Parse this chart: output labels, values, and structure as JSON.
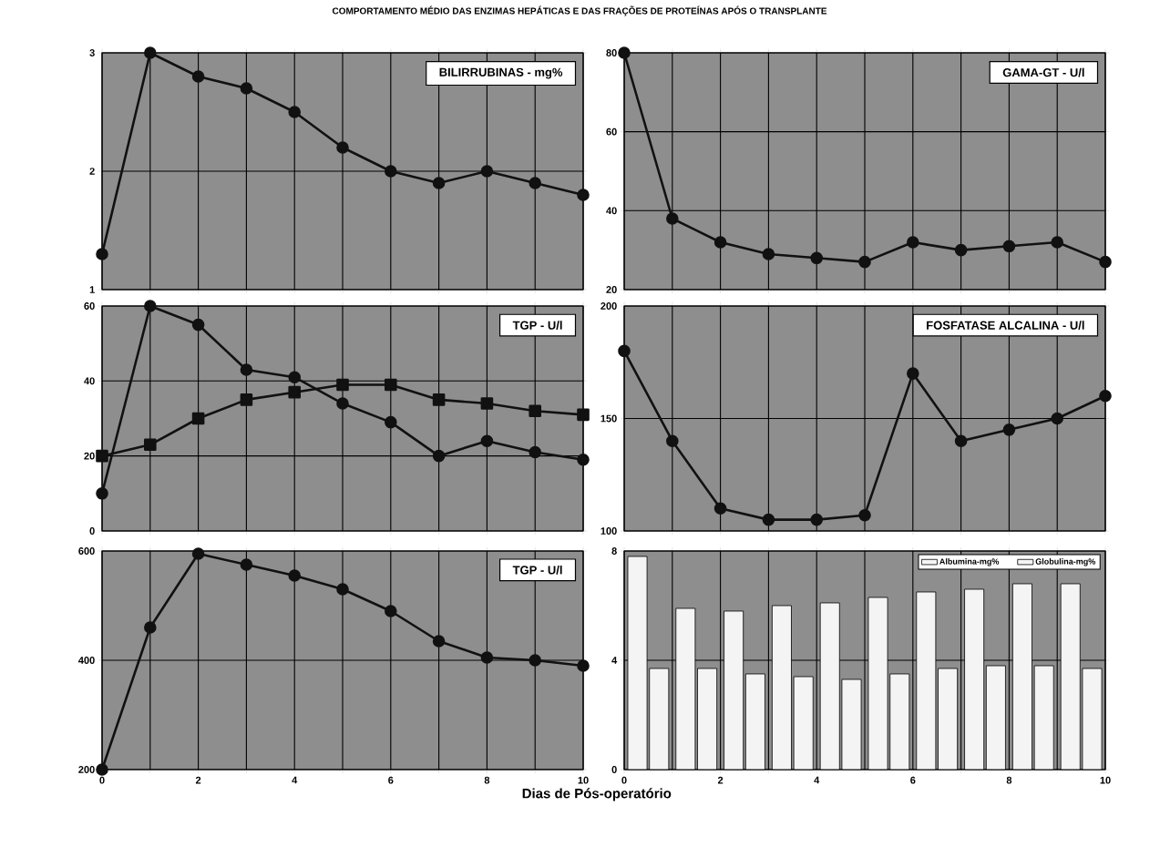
{
  "chart_data": [
    {
      "type": "line",
      "title": "BILIRRUBINAS - mg%",
      "annotations": [
        "COMPORTAMENTO MÉDIO DAS ENZIMAS HEPÁTICAS E DAS FRAÇÕES DE PROTEÍNAS APÓS O TRANSPLANTE"
      ],
      "x": [
        0,
        1,
        2,
        3,
        4,
        5,
        6,
        7,
        8,
        9,
        10
      ],
      "series": [
        {
          "color": "#111111",
          "values": [
            1.3,
            3.0,
            2.8,
            2.7,
            2.5,
            2.2,
            2.0,
            1.9,
            2.0,
            1.9,
            1.8
          ]
        }
      ],
      "marker": "circle",
      "xlim": [
        0,
        10
      ],
      "xticks": [
        0,
        {
          "value": 1,
          "label": null
        },
        2,
        {
          "value": 3,
          "label": null
        },
        4,
        {
          "value": 5,
          "label": null
        },
        6,
        {
          "value": 7,
          "label": null
        },
        8,
        {
          "value": 9,
          "label": null
        },
        10
      ],
      "ylim": [
        1,
        3
      ],
      "yticks": [
        1,
        2,
        3
      ],
      "grid": true,
      "tick_labels": "y"
    },
    {
      "type": "line",
      "title": "GAMA-GT  - U/l",
      "x": [
        0,
        1,
        2,
        3,
        4,
        5,
        6,
        7,
        8,
        9,
        10
      ],
      "series": [
        {
          "color": "#111111",
          "values": [
            80,
            38,
            32,
            29,
            28,
            27,
            32,
            30,
            31,
            32,
            27
          ]
        }
      ],
      "marker": "circle",
      "xlim": [
        0,
        10
      ],
      "xticks": [
        0,
        {
          "value": 1,
          "label": null
        },
        2,
        {
          "value": 3,
          "label": null
        },
        4,
        {
          "value": 5,
          "label": null
        },
        6,
        {
          "value": 7,
          "label": null
        },
        8,
        {
          "value": 9,
          "label": null
        },
        10
      ],
      "ylim": [
        20,
        80
      ],
      "yticks": [
        20,
        40,
        60,
        80
      ],
      "grid": true,
      "tick_labels": "y"
    },
    {
      "type": "line",
      "title": "TGP - U/l",
      "x": [
        0,
        1,
        2,
        3,
        4,
        5,
        6,
        7,
        8,
        9,
        10
      ],
      "series": [
        {
          "color": "#111111",
          "marker": "circle",
          "values": [
            10,
            60,
            55,
            43,
            41,
            34,
            29,
            20,
            24,
            21,
            19
          ]
        },
        {
          "color": "#111111",
          "marker": "square",
          "values": [
            20,
            23,
            30,
            35,
            37,
            39,
            39,
            35,
            34,
            32,
            31
          ]
        }
      ],
      "xlim": [
        0,
        10
      ],
      "xticks": [
        0,
        {
          "value": 1,
          "label": null
        },
        2,
        {
          "value": 3,
          "label": null
        },
        4,
        {
          "value": 5,
          "label": null
        },
        6,
        {
          "value": 7,
          "label": null
        },
        8,
        {
          "value": 9,
          "label": null
        },
        10
      ],
      "ylim": [
        0,
        60
      ],
      "yticks": [
        0,
        20,
        40,
        60
      ],
      "grid": true,
      "tick_labels": "y"
    },
    {
      "type": "line",
      "title": "FOSFATASE ALCALINA - U/l",
      "x": [
        0,
        1,
        2,
        3,
        4,
        5,
        6,
        7,
        8,
        9,
        10
      ],
      "series": [
        {
          "color": "#111111",
          "values": [
            180,
            140,
            110,
            105,
            105,
            107,
            170,
            140,
            145,
            150,
            160
          ]
        }
      ],
      "marker": "circle",
      "xlim": [
        0,
        10
      ],
      "xticks": [
        0,
        {
          "value": 1,
          "label": null
        },
        2,
        {
          "value": 3,
          "label": null
        },
        4,
        {
          "value": 5,
          "label": null
        },
        6,
        {
          "value": 7,
          "label": null
        },
        8,
        {
          "value": 9,
          "label": null
        },
        10
      ],
      "ylim": [
        100,
        200
      ],
      "yticks": [
        100,
        150,
        200
      ],
      "grid": true,
      "tick_labels": "y"
    },
    {
      "type": "line",
      "title": "TGP - U/l",
      "xlabel": "Dias de Pós-operatório",
      "x": [
        0,
        1,
        2,
        3,
        4,
        5,
        6,
        7,
        8,
        9,
        10
      ],
      "series": [
        {
          "color": "#111111",
          "values": [
            200,
            460,
            595,
            575,
            555,
            530,
            490,
            435,
            405,
            400,
            390
          ]
        }
      ],
      "marker": "circle",
      "xlim": [
        0,
        10
      ],
      "xticks": [
        0,
        {
          "value": 1,
          "label": null
        },
        2,
        {
          "value": 3,
          "label": null
        },
        4,
        {
          "value": 5,
          "label": null
        },
        6,
        {
          "value": 7,
          "label": null
        },
        8,
        {
          "value": 9,
          "label": null
        },
        10
      ],
      "ylim": [
        200,
        600
      ],
      "yticks": [
        200,
        400,
        600
      ],
      "grid": true
    },
    {
      "type": "bar",
      "x": [
        0.5,
        1.5,
        2.5,
        3.5,
        4.5,
        5.5,
        6.5,
        7.5,
        8.5,
        9.5
      ],
      "series": [
        {
          "name": "Albumina-mg%",
          "color": "#f4f4f4",
          "values": [
            7.8,
            5.9,
            5.8,
            6.0,
            6.1,
            6.3,
            6.5,
            6.6,
            6.8,
            6.8
          ]
        },
        {
          "name": "Globulina-mg%",
          "color": "#f4f4f4",
          "values": [
            3.7,
            3.7,
            3.5,
            3.4,
            3.3,
            3.5,
            3.7,
            3.8,
            3.8,
            3.7
          ]
        }
      ],
      "xlim": [
        0,
        10
      ],
      "xticks": [
        0,
        {
          "value": 1,
          "label": null
        },
        2,
        {
          "value": 3,
          "label": null
        },
        4,
        {
          "value": 5,
          "label": null
        },
        6,
        {
          "value": 7,
          "label": null
        },
        8,
        {
          "value": 9,
          "label": null
        },
        10
      ],
      "ylim": [
        0,
        8
      ],
      "yticks": [
        0,
        4,
        8
      ],
      "grid": true,
      "legend": "top right"
    }
  ]
}
